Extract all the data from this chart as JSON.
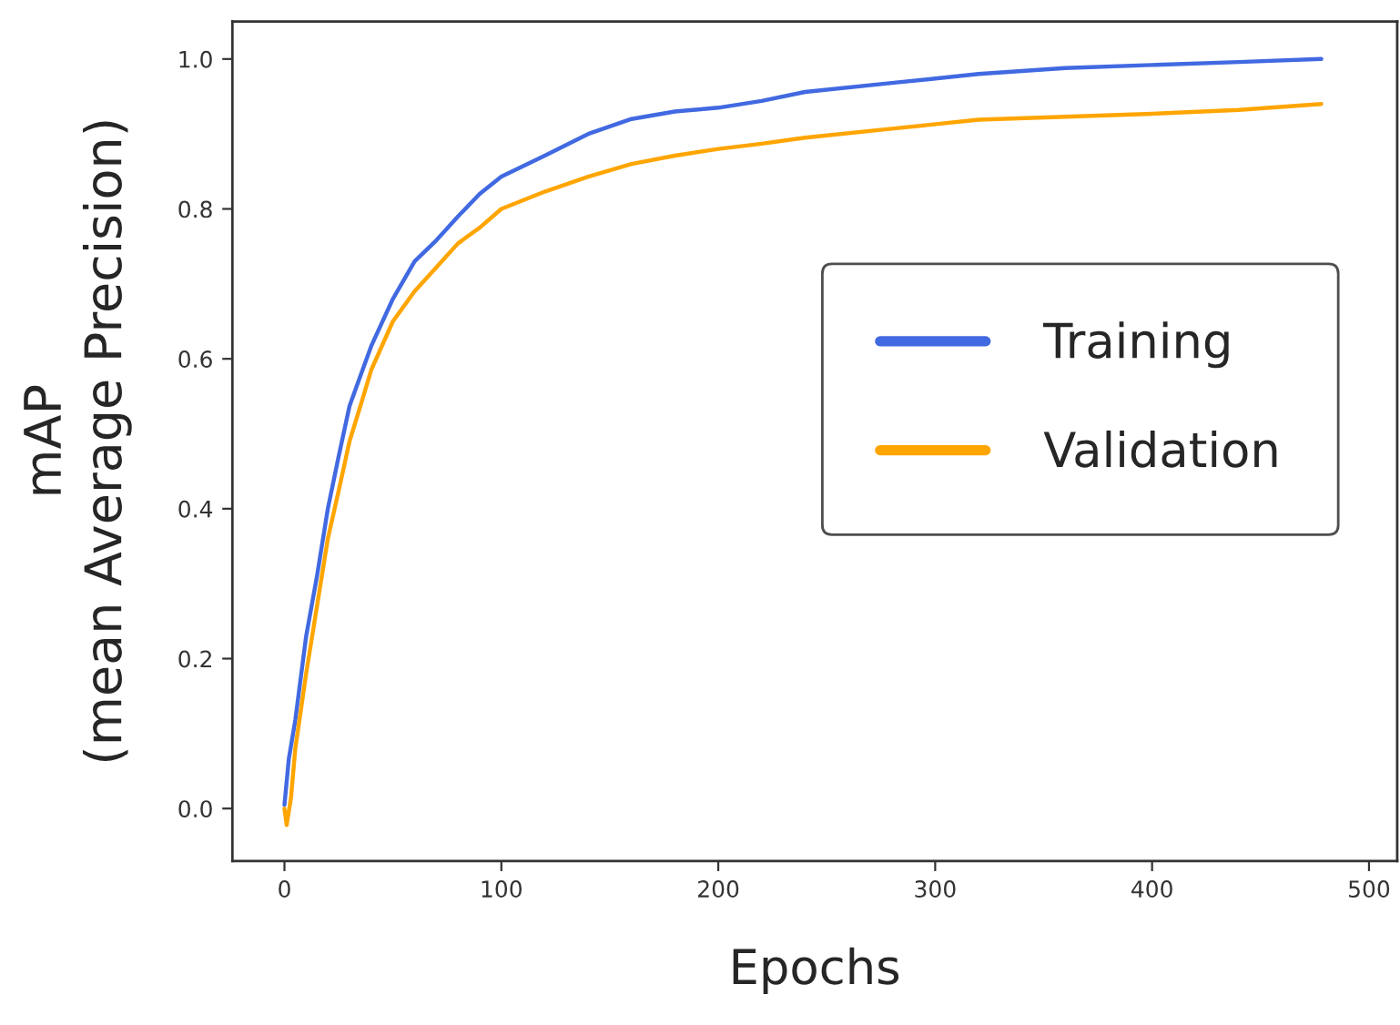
{
  "chart_data": {
    "type": "line",
    "xlabel": "Epochs",
    "ylabel": "mAP\n(mean Average Precision)",
    "xlim": [
      -24,
      513
    ],
    "ylim": [
      -0.07,
      1.05
    ],
    "xticks": [
      0,
      100,
      200,
      300,
      400,
      500
    ],
    "yticks": [
      {
        "value": 0,
        "label": "0.0"
      },
      {
        "value": 0.2,
        "label": "0.2"
      },
      {
        "value": 0.4,
        "label": "0.4"
      },
      {
        "value": 0.6,
        "label": "0.6"
      },
      {
        "value": 0.8,
        "label": "0.8"
      },
      {
        "value": 1.0,
        "label": "1.0"
      }
    ],
    "grid": false,
    "legend": "right",
    "marker": "none",
    "line_style": "solid",
    "series": [
      {
        "name": "Training",
        "color": "#4169e1",
        "x": [
          0,
          2,
          5,
          10,
          15,
          20,
          25,
          30,
          35,
          40,
          50,
          60,
          70,
          80,
          90,
          100,
          120,
          140,
          160,
          180,
          200,
          220,
          240,
          280,
          320,
          360,
          400,
          440,
          478
        ],
        "values": [
          0.005,
          0.066,
          0.118,
          0.23,
          0.31,
          0.4,
          0.47,
          0.537,
          0.577,
          0.617,
          0.68,
          0.73,
          0.758,
          0.79,
          0.82,
          0.843,
          0.871,
          0.9,
          0.92,
          0.93,
          0.935,
          0.944,
          0.956,
          0.968,
          0.98,
          0.988,
          0.992,
          0.996,
          1.0
        ]
      },
      {
        "name": "Validation",
        "color": "#ffa500",
        "x": [
          0,
          1,
          3,
          5,
          10,
          15,
          20,
          25,
          30,
          35,
          40,
          50,
          60,
          70,
          80,
          90,
          100,
          120,
          140,
          160,
          180,
          200,
          220,
          240,
          280,
          320,
          360,
          400,
          440,
          478
        ],
        "values": [
          0.0,
          -0.022,
          0.014,
          0.08,
          0.18,
          0.27,
          0.36,
          0.424,
          0.49,
          0.537,
          0.585,
          0.65,
          0.69,
          0.722,
          0.754,
          0.775,
          0.8,
          0.823,
          0.843,
          0.86,
          0.871,
          0.88,
          0.887,
          0.895,
          0.907,
          0.919,
          0.923,
          0.927,
          0.932,
          0.94
        ]
      }
    ]
  }
}
